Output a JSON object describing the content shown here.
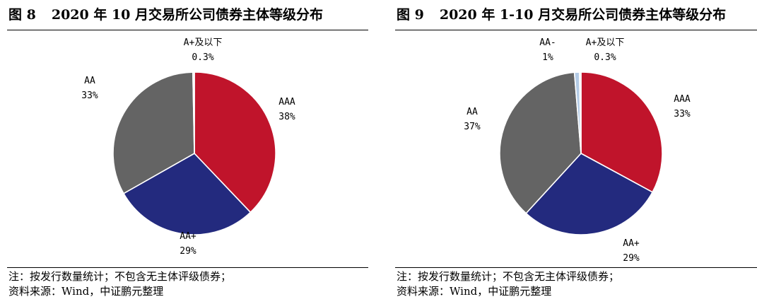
{
  "colors": {
    "AAA": "#c0142b",
    "AA+": "#232a7e",
    "AA": "#646464",
    "AA-": "#b3cbe6",
    "A+及以下": "#e0e0e0"
  },
  "chart_data": [
    {
      "type": "pie",
      "fig_label": "图 8",
      "title": "2020 年 10 月交易所公司债券主体等级分布",
      "categories": [
        "AAA",
        "AA+",
        "AA",
        "A+及以下"
      ],
      "values": [
        38,
        29,
        33,
        0.3
      ],
      "value_labels": [
        "38%",
        "29%",
        "33%",
        "0.3%"
      ],
      "start_category": "AAA",
      "direction": "clockwise",
      "legend": "none",
      "notes": [
        "注：按发行数量统计；不包含无主体评级债券；",
        "资料来源：Wind，中证鹏元整理"
      ]
    },
    {
      "type": "pie",
      "fig_label": "图 9",
      "title": "2020 年 1-10 月交易所公司债券主体等级分布",
      "categories": [
        "AAA",
        "AA+",
        "AA",
        "AA-",
        "A+及以下"
      ],
      "values": [
        33,
        29,
        37,
        1,
        0.3
      ],
      "value_labels": [
        "33%",
        "29%",
        "37%",
        "1%",
        "0.3%"
      ],
      "start_category": "AAA",
      "direction": "clockwise",
      "legend": "none",
      "notes": [
        "注：按发行数量统计；不包含无主体评级债券；",
        "资料来源：Wind，中证鹏元整理"
      ]
    }
  ]
}
